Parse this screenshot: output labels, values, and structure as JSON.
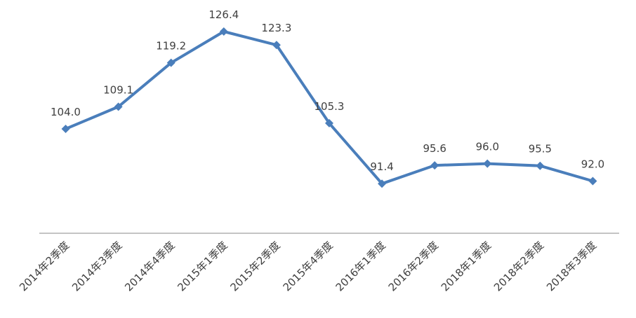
{
  "chart_data": {
    "type": "line",
    "categories": [
      "2014年2季度",
      "2014年3季度",
      "2014年4季度",
      "2015年1季度",
      "2015年2季度",
      "2015年4季度",
      "2016年1季度",
      "2016年2季度",
      "2018年1季度",
      "2018年2季度",
      "2018年3季度"
    ],
    "series": [
      {
        "values": [
          104.0,
          109.1,
          119.2,
          126.4,
          123.3,
          105.3,
          91.4,
          95.6,
          96.0,
          95.5,
          92.0
        ],
        "labels": [
          "104.0",
          "109.1",
          "119.2",
          "126.4",
          "123.3",
          "105.3",
          "91.4",
          "95.6",
          "96.0",
          "95.5",
          "92.0"
        ],
        "color": "#4a7ebb",
        "marker": "diamond"
      }
    ],
    "title": "",
    "xlabel": "",
    "ylabel": "",
    "ylim": [
      80,
      130
    ],
    "grid": false,
    "legend": "none"
  }
}
